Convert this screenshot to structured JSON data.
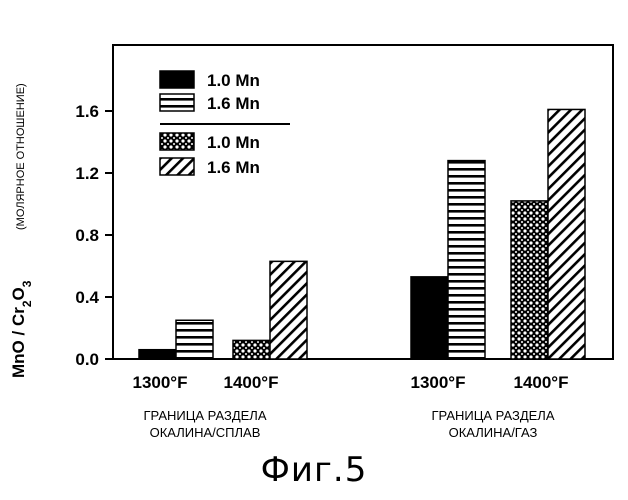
{
  "figure_caption": "Фиг.5",
  "chart_data": {
    "type": "bar",
    "ylabel_main": "MnO / Cr",
    "ylabel_sub1": "2",
    "ylabel_mid": "O",
    "ylabel_sub2": "3",
    "ylabel_note": "(МОЛЯРНОЕ ОТНОШЕНИЕ)",
    "ylim": [
      0,
      2.0
    ],
    "y_ticks": [
      0.0,
      0.4,
      0.8,
      1.2,
      1.6
    ],
    "y_tick_labels": [
      "0.0",
      "0.4",
      "0.8",
      "1.2",
      "1.6"
    ],
    "groups": [
      {
        "label_line1": "ГРАНИЦА РАЗДЕЛА",
        "label_line2": "ОКАЛИНА/СПЛАВ",
        "categories": [
          {
            "label": "1300°F",
            "bars": [
              {
                "series": 0,
                "value": 0.06
              },
              {
                "series": 1,
                "value": 0.25
              }
            ]
          },
          {
            "label": "1400°F",
            "bars": [
              {
                "series": 2,
                "value": 0.12
              },
              {
                "series": 3,
                "value": 0.63
              }
            ]
          }
        ]
      },
      {
        "label_line1": "ГРАНИЦА РАЗДЕЛА",
        "label_line2": "ОКАЛИНА/ГАЗ",
        "categories": [
          {
            "label": "1300°F",
            "bars": [
              {
                "series": 0,
                "value": 0.53
              },
              {
                "series": 1,
                "value": 1.28
              }
            ]
          },
          {
            "label": "1400°F",
            "bars": [
              {
                "series": 2,
                "value": 1.02
              },
              {
                "series": 3,
                "value": 1.61
              }
            ]
          }
        ]
      }
    ],
    "series": [
      {
        "name": "1.0 Mn",
        "pattern": "solid"
      },
      {
        "name": "1.6 Mn",
        "pattern": "horizontal-stripes"
      },
      {
        "name": "1.0 Mn",
        "pattern": "crosshatch"
      },
      {
        "name": "1.6 Mn",
        "pattern": "diagonal-stripes"
      }
    ],
    "legend_position": "top-left"
  }
}
